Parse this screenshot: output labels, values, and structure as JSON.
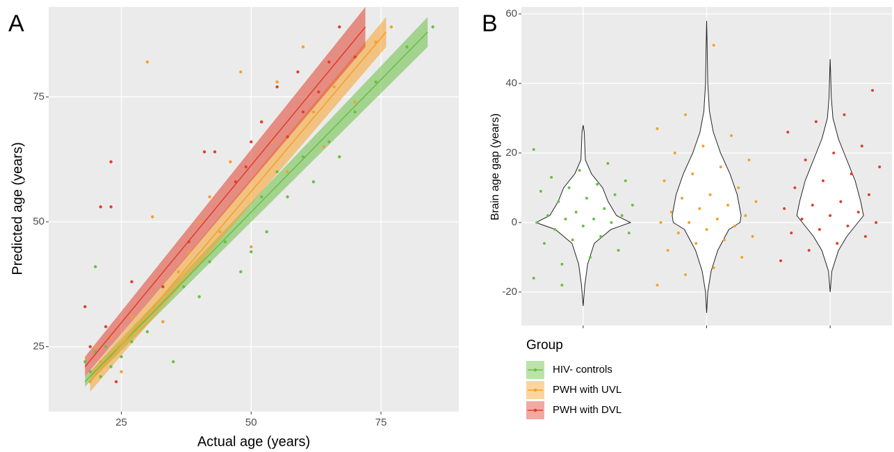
{
  "chart_data": [
    {
      "type": "scatter",
      "panel": "A",
      "xlabel": "Actual age (years)",
      "ylabel": "Predicted age (years)",
      "xlim": [
        11,
        90
      ],
      "ylim": [
        12,
        93
      ],
      "xticks": [
        25,
        50,
        75
      ],
      "yticks": [
        25,
        50,
        75
      ],
      "grid": true,
      "legend_title": "Group",
      "series": [
        {
          "name": "HIV- controls",
          "color": "#6abf45",
          "x": [
            18,
            19,
            20,
            20,
            21,
            22,
            23,
            25,
            27,
            30,
            33,
            35,
            37,
            40,
            42,
            45,
            48,
            50,
            52,
            53,
            55,
            57,
            60,
            62,
            65,
            67,
            70,
            74,
            80,
            85
          ],
          "y": [
            22,
            20,
            24,
            41,
            19,
            25,
            21,
            23,
            26,
            28,
            30,
            22,
            37,
            35,
            42,
            46,
            40,
            44,
            55,
            48,
            60,
            55,
            63,
            58,
            66,
            63,
            72,
            78,
            85,
            89
          ],
          "fit_x": [
            18,
            84
          ],
          "fit_y": [
            18,
            88
          ],
          "ci_low": [
            17,
            85
          ],
          "ci_high": [
            19,
            91
          ]
        },
        {
          "name": "PWH with UVL",
          "color": "#f5a12a",
          "x": [
            19,
            20,
            21,
            23,
            25,
            27,
            30,
            31,
            33,
            36,
            38,
            40,
            42,
            44,
            46,
            48,
            50,
            52,
            54,
            55,
            57,
            60,
            62,
            64,
            66,
            70,
            74,
            77
          ],
          "y": [
            18,
            25,
            22,
            27,
            20,
            31,
            82,
            51,
            30,
            40,
            44,
            50,
            55,
            48,
            62,
            80,
            45,
            70,
            66,
            78,
            60,
            85,
            72,
            65,
            77,
            74,
            86,
            89
          ],
          "fit_x": [
            19,
            76
          ],
          "fit_y": [
            18,
            88
          ],
          "ci_low": [
            16,
            85
          ],
          "ci_high": [
            20,
            91
          ]
        },
        {
          "name": "PWH with DVL",
          "color": "#e0402e",
          "x": [
            18,
            19,
            21,
            22,
            23,
            23,
            24,
            27,
            33,
            38,
            41,
            43,
            47,
            49,
            50,
            52,
            55,
            57,
            59,
            60,
            63,
            65,
            67,
            70
          ],
          "y": [
            33,
            25,
            53,
            29,
            53,
            62,
            18,
            38,
            37,
            46,
            64,
            64,
            58,
            61,
            66,
            70,
            77,
            67,
            80,
            72,
            76,
            82,
            89,
            83
          ],
          "fit_x": [
            18,
            72
          ],
          "fit_y": [
            21,
            89
          ],
          "ci_low": [
            19,
            85
          ],
          "ci_high": [
            23,
            93
          ]
        }
      ]
    },
    {
      "type": "violin",
      "panel": "B",
      "ylabel": "Brain age gap (years)",
      "categories": [
        null,
        null,
        null
      ],
      "ylim": [
        -29.6,
        62
      ],
      "yticks": [
        -20,
        0,
        20,
        40,
        60
      ],
      "grid": true,
      "series": [
        {
          "color": "#6abf45",
          "values": [
            -16,
            -12,
            -10,
            -8,
            -6,
            -5,
            -4,
            -3,
            -2,
            -1,
            0,
            0,
            1,
            1,
            2,
            2,
            3,
            4,
            5,
            6,
            7,
            8,
            9,
            10,
            11,
            12,
            13,
            15,
            17,
            21,
            -18
          ],
          "violin_y": [
            -24,
            -18,
            -12,
            -6,
            -2,
            0,
            2,
            6,
            10,
            14,
            18,
            22,
            26,
            28
          ],
          "density": [
            0,
            0.03,
            0.08,
            0.2,
            0.5,
            0.85,
            0.6,
            0.45,
            0.35,
            0.15,
            0.04,
            0.03,
            0.02,
            0
          ]
        },
        {
          "color": "#f5a12a",
          "values": [
            -18,
            -15,
            -13,
            -10,
            -8,
            -6,
            -5,
            -4,
            -3,
            -2,
            -1,
            0,
            0,
            1,
            2,
            3,
            4,
            5,
            6,
            7,
            8,
            10,
            12,
            14,
            16,
            18,
            20,
            22,
            25,
            27,
            31,
            51
          ],
          "violin_y": [
            -26,
            -20,
            -14,
            -8,
            -2,
            0,
            2,
            8,
            14,
            20,
            26,
            32,
            40,
            50,
            58
          ],
          "density": [
            0,
            0.02,
            0.08,
            0.2,
            0.4,
            0.6,
            0.62,
            0.55,
            0.42,
            0.25,
            0.12,
            0.05,
            0.02,
            0.01,
            0
          ]
        },
        {
          "color": "#e0402e",
          "values": [
            -11,
            -8,
            -6,
            -4,
            -3,
            -2,
            -1,
            0,
            1,
            2,
            3,
            4,
            5,
            6,
            8,
            10,
            12,
            14,
            16,
            18,
            20,
            22,
            26,
            29,
            31,
            38
          ],
          "violin_y": [
            -20,
            -14,
            -8,
            -4,
            0,
            2,
            6,
            12,
            18,
            24,
            30,
            36,
            42,
            47
          ],
          "density": [
            0,
            0.03,
            0.15,
            0.3,
            0.5,
            0.6,
            0.55,
            0.45,
            0.3,
            0.15,
            0.05,
            0.02,
            0.01,
            0
          ]
        }
      ]
    }
  ]
}
